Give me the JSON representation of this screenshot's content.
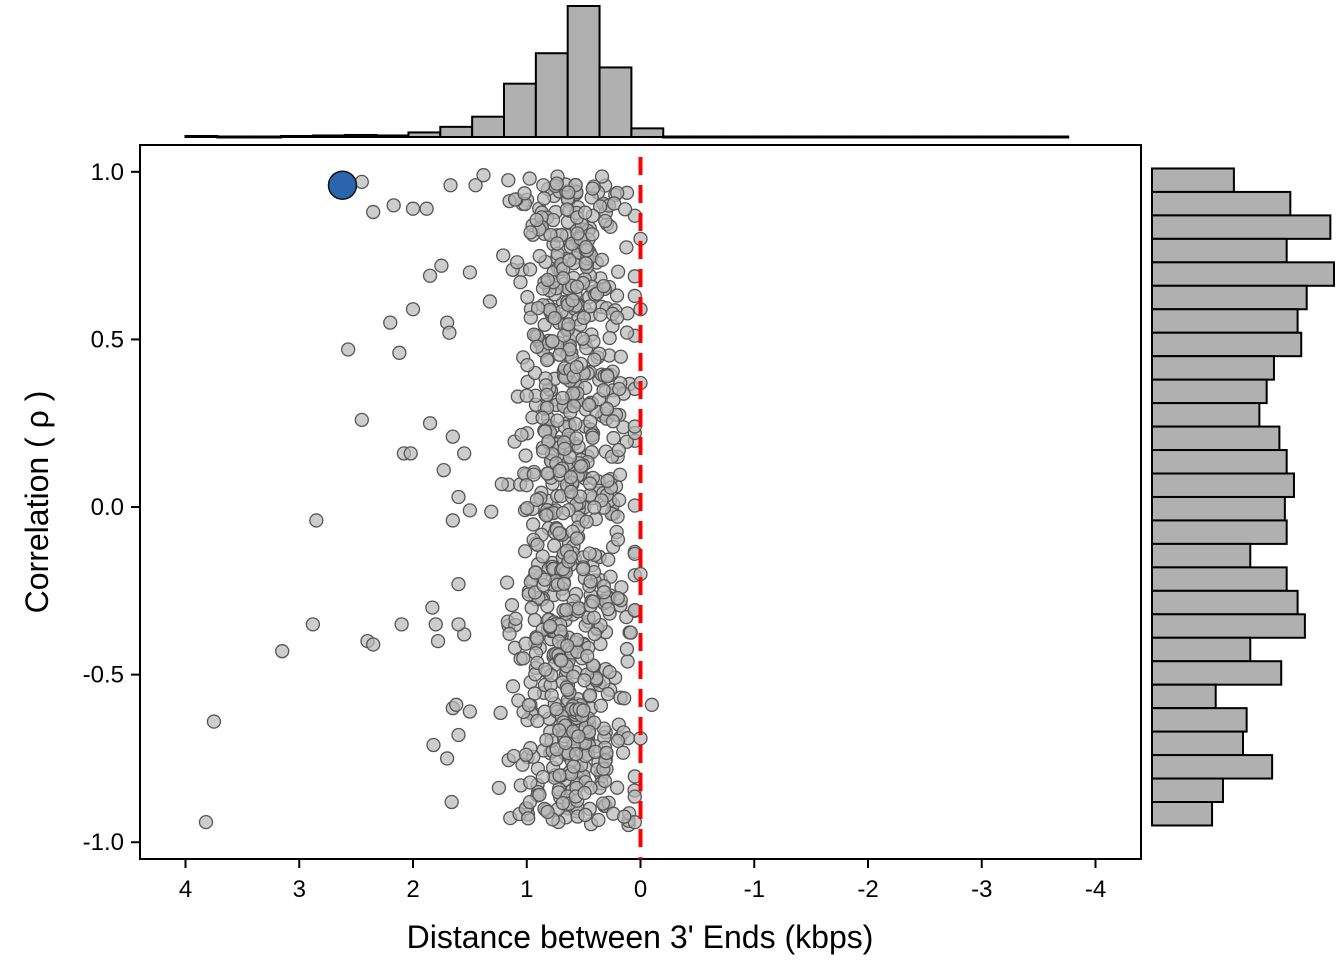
{
  "chart_data": {
    "type": "scatter",
    "title": "",
    "xlabel": "Distance between 3' Ends (kbps)",
    "ylabel": "Correlation ( ρ )",
    "x_reversed": true,
    "xlim": [
      4.4,
      -4.4
    ],
    "ylim": [
      -1.05,
      1.08
    ],
    "x_ticks": [
      4,
      3,
      2,
      1,
      0,
      -1,
      -2,
      -3,
      -4
    ],
    "x_tick_labels": [
      "4",
      "3",
      "2",
      "1",
      "0",
      "-1",
      "-2",
      "-3",
      "-4"
    ],
    "y_ticks": [
      1.0,
      0.5,
      0.0,
      -0.5,
      -1.0
    ],
    "y_tick_labels": [
      "1.0",
      "0.5",
      "0.0",
      "-0.5",
      "-1.0"
    ],
    "grid": false,
    "legend": "none",
    "reference_line": {
      "x": 0,
      "style": "dashed",
      "color": "#ff0000"
    },
    "colors": {
      "points_fill": "#b8b8b8",
      "points_stroke": "#555555",
      "highlight": "#2b65ac",
      "histogram_fill": "#b0b0b0"
    },
    "highlight_point": {
      "x": 2.62,
      "y": 0.96
    },
    "outlier_points": [
      [
        2.45,
        0.97
      ],
      [
        2.35,
        0.88
      ],
      [
        2.17,
        0.9
      ],
      [
        2.0,
        0.89
      ],
      [
        1.88,
        0.89
      ],
      [
        1.67,
        0.96
      ],
      [
        1.45,
        0.96
      ],
      [
        1.38,
        0.99
      ],
      [
        2.57,
        0.47
      ],
      [
        2.12,
        0.46
      ],
      [
        2.2,
        0.55
      ],
      [
        2.0,
        0.59
      ],
      [
        1.85,
        0.69
      ],
      [
        1.75,
        0.72
      ],
      [
        1.7,
        0.55
      ],
      [
        1.68,
        0.52
      ],
      [
        1.5,
        0.7
      ],
      [
        2.45,
        0.26
      ],
      [
        2.08,
        0.16
      ],
      [
        2.02,
        0.16
      ],
      [
        1.85,
        0.25
      ],
      [
        1.65,
        0.21
      ],
      [
        1.55,
        0.16
      ],
      [
        2.85,
        -0.04
      ],
      [
        1.73,
        0.11
      ],
      [
        1.6,
        0.03
      ],
      [
        1.65,
        -0.04
      ],
      [
        1.5,
        -0.01
      ],
      [
        2.88,
        -0.35
      ],
      [
        3.15,
        -0.43
      ],
      [
        2.4,
        -0.4
      ],
      [
        2.35,
        -0.41
      ],
      [
        2.1,
        -0.35
      ],
      [
        1.83,
        -0.3
      ],
      [
        1.8,
        -0.35
      ],
      [
        1.78,
        -0.4
      ],
      [
        1.6,
        -0.23
      ],
      [
        1.55,
        -0.38
      ],
      [
        1.6,
        -0.35
      ],
      [
        3.75,
        -0.64
      ],
      [
        3.82,
        -0.94
      ],
      [
        1.82,
        -0.71
      ],
      [
        1.7,
        -0.75
      ],
      [
        1.65,
        -0.6
      ],
      [
        1.62,
        -0.59
      ],
      [
        1.6,
        -0.68
      ],
      [
        1.66,
        -0.88
      ],
      [
        1.5,
        -0.61
      ],
      [
        0.0,
        0.8
      ],
      [
        0.0,
        0.59
      ],
      [
        0.0,
        0.37
      ],
      [
        0.0,
        -0.2
      ],
      [
        0.0,
        -0.69
      ],
      [
        -0.1,
        -0.59
      ]
    ],
    "dense_cluster": {
      "n": 900,
      "seed": 12345,
      "x_center": 0.6,
      "x_spread": 0.26,
      "x_range": [
        0.05,
        1.55
      ],
      "y_range": [
        -0.95,
        0.99
      ]
    },
    "top_histogram": {
      "bin_edges": [
        4.0,
        3.72,
        3.44,
        3.16,
        2.88,
        2.6,
        2.32,
        2.04,
        1.76,
        1.48,
        1.2,
        0.92,
        0.64,
        0.36,
        0.08,
        -0.2,
        -0.48,
        -0.76,
        -1.04,
        -1.32,
        -1.6,
        -1.88,
        -2.16,
        -2.44,
        -2.72,
        -3.0,
        -3.28,
        -3.56,
        -3.76
      ],
      "counts": [
        2,
        1,
        1,
        2,
        3,
        4,
        3,
        9,
        20,
        40,
        105,
        165,
        258,
        137,
        17,
        1,
        1,
        1,
        1,
        1,
        1,
        1,
        1,
        1,
        1,
        1,
        1,
        1
      ]
    },
    "right_histogram": {
      "bin_edges": [
        1.01,
        0.94,
        0.87,
        0.8,
        0.73,
        0.66,
        0.59,
        0.52,
        0.45,
        0.38,
        0.31,
        0.24,
        0.17,
        0.1,
        0.03,
        -0.04,
        -0.11,
        -0.18,
        -0.25,
        -0.32,
        -0.39,
        -0.46,
        -0.53,
        -0.6,
        -0.67,
        -0.74,
        -0.81,
        -0.88,
        -0.95
      ],
      "counts": [
        45,
        76,
        98,
        74,
        100,
        85,
        80,
        82,
        67,
        63,
        59,
        70,
        74,
        78,
        73,
        74,
        54,
        74,
        80,
        84,
        54,
        71,
        35,
        52,
        50,
        66,
        39,
        33
      ]
    }
  }
}
